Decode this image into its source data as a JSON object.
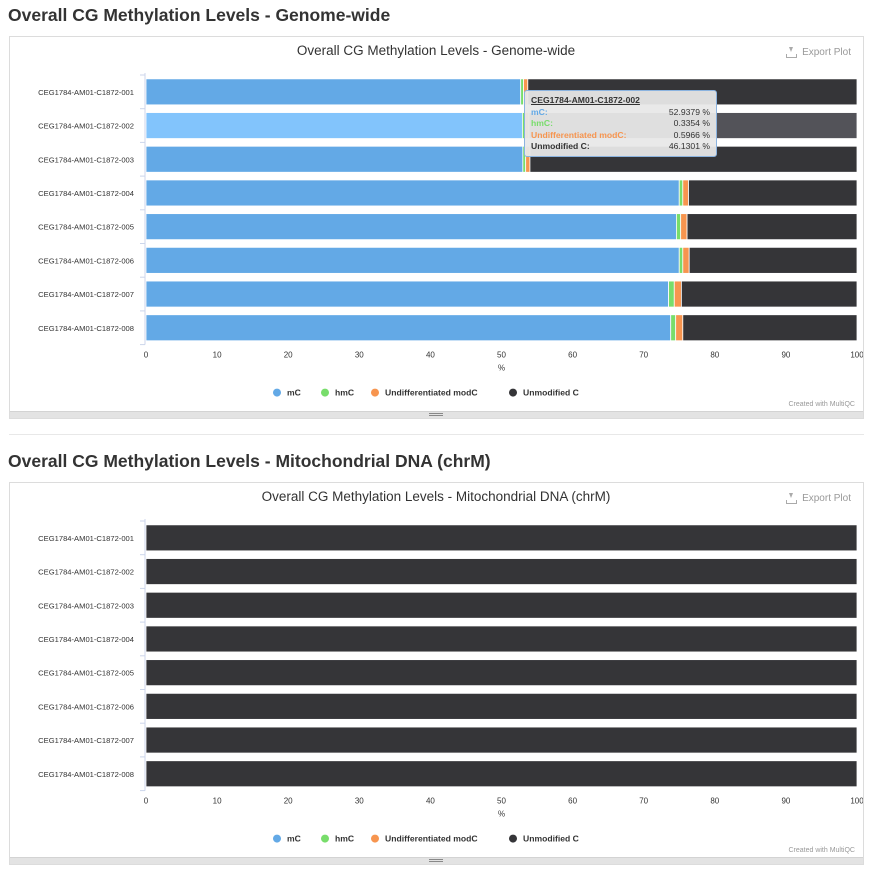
{
  "sections": [
    {
      "heading": "Overall CG Methylation Levels - Genome-wide"
    },
    {
      "heading": "Overall CG Methylation Levels - Mitochondrial DNA (chrM)"
    }
  ],
  "export_label": "Export Plot",
  "credit": "Created with MultiQC",
  "colors": {
    "mC": "#63a9e6",
    "hmC": "#78dd6b",
    "modC": "#f7954f",
    "unmod": "#353538",
    "hover_mC": "#82c4fc",
    "hover_unmod": "#535359"
  },
  "chart_data": [
    {
      "type": "bar",
      "orientation": "horizontal",
      "stacked": true,
      "title": "Overall CG Methylation Levels - Genome-wide",
      "xlabel": "%",
      "xlim": [
        0,
        100
      ],
      "xticks": [
        0,
        10,
        20,
        30,
        40,
        50,
        60,
        70,
        80,
        90,
        100
      ],
      "legend_position": "bottom",
      "categories": [
        "CEG1784-AM01-C1872-001",
        "CEG1784-AM01-C1872-002",
        "CEG1784-AM01-C1872-003",
        "CEG1784-AM01-C1872-004",
        "CEG1784-AM01-C1872-005",
        "CEG1784-AM01-C1872-006",
        "CEG1784-AM01-C1872-007",
        "CEG1784-AM01-C1872-008"
      ],
      "series": [
        {
          "name": "mC",
          "color": "#63a9e6",
          "values": [
            52.7,
            52.9379,
            53.0,
            75.0,
            74.6,
            75.0,
            73.5,
            73.8
          ]
        },
        {
          "name": "hmC",
          "color": "#78dd6b",
          "values": [
            0.4,
            0.3354,
            0.4,
            0.5,
            0.6,
            0.5,
            0.8,
            0.7
          ]
        },
        {
          "name": "Undifferentiated modC",
          "color": "#f7954f",
          "values": [
            0.6,
            0.5966,
            0.6,
            0.8,
            0.9,
            0.9,
            1.0,
            1.0
          ]
        },
        {
          "name": "Unmodified C",
          "color": "#353538",
          "values": [
            46.3,
            46.1301,
            46.0,
            23.7,
            23.9,
            23.6,
            24.7,
            24.5
          ]
        }
      ],
      "tooltip": {
        "sample": "CEG1784-AM01-C1872-002",
        "rows": [
          {
            "label": "mC:",
            "value": "52.9379 %",
            "color": "#63a9e6"
          },
          {
            "label": "hmC:",
            "value": "0.3354 %",
            "color": "#78dd6b"
          },
          {
            "label": "Undifferentiated modC:",
            "value": "0.5966 %",
            "color": "#f7954f"
          },
          {
            "label": "Unmodified C:",
            "value": "46.1301 %",
            "color": "#333333"
          }
        ]
      },
      "hover_index": 1
    },
    {
      "type": "bar",
      "orientation": "horizontal",
      "stacked": true,
      "title": "Overall CG Methylation Levels - Mitochondrial DNA (chrM)",
      "xlabel": "%",
      "xlim": [
        0,
        100
      ],
      "xticks": [
        0,
        10,
        20,
        30,
        40,
        50,
        60,
        70,
        80,
        90,
        100
      ],
      "legend_position": "bottom",
      "categories": [
        "CEG1784-AM01-C1872-001",
        "CEG1784-AM01-C1872-002",
        "CEG1784-AM01-C1872-003",
        "CEG1784-AM01-C1872-004",
        "CEG1784-AM01-C1872-005",
        "CEG1784-AM01-C1872-006",
        "CEG1784-AM01-C1872-007",
        "CEG1784-AM01-C1872-008"
      ],
      "series": [
        {
          "name": "mC",
          "color": "#63a9e6",
          "values": [
            0,
            0,
            0,
            0,
            0,
            0,
            0,
            0
          ]
        },
        {
          "name": "hmC",
          "color": "#78dd6b",
          "values": [
            0,
            0,
            0,
            0,
            0,
            0,
            0,
            0
          ]
        },
        {
          "name": "Undifferentiated modC",
          "color": "#f7954f",
          "values": [
            0,
            0,
            0,
            0,
            0,
            0,
            0,
            0
          ]
        },
        {
          "name": "Unmodified C",
          "color": "#353538",
          "values": [
            100,
            100,
            100,
            100,
            100,
            100,
            100,
            100
          ]
        }
      ]
    }
  ]
}
